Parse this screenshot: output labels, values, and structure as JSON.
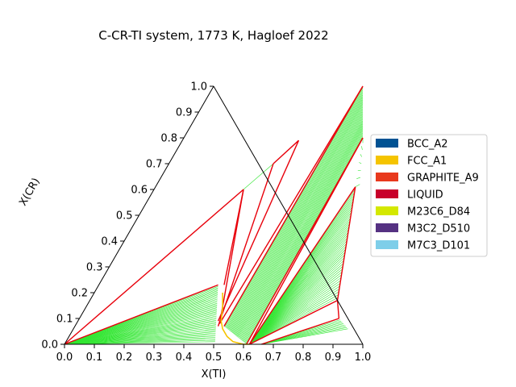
{
  "chart_data": {
    "type": "ternary",
    "title": "C-CR-TI system, 1773 K, Hagloef 2022",
    "xlabel": "X(TI)",
    "ylabel": "X(CR)",
    "xlim": [
      0,
      1
    ],
    "ylim": [
      0,
      1
    ],
    "x_ticks": [
      "0.0",
      "0.1",
      "0.2",
      "0.3",
      "0.4",
      "0.5",
      "0.6",
      "0.7",
      "0.8",
      "0.9",
      "1.0"
    ],
    "y_ticks": [
      "0.0",
      "0.1",
      "0.2",
      "0.3",
      "0.4",
      "0.5",
      "0.6",
      "0.7",
      "0.8",
      "0.9",
      "1.0"
    ],
    "legend_position": "center-right",
    "legend": [
      {
        "label": "BCC_A2",
        "color": "#005293"
      },
      {
        "label": "FCC_A1",
        "color": "#f5c400"
      },
      {
        "label": "GRAPHITE_A9",
        "color": "#e8391d"
      },
      {
        "label": "LIQUID",
        "color": "#c8002a"
      },
      {
        "label": "M23C6_D84",
        "color": "#d4e800"
      },
      {
        "label": "M3C2_D510",
        "color": "#553182"
      },
      {
        "label": "M7C3_D101",
        "color": "#7ecee9"
      }
    ],
    "phase_boundaries": [
      {
        "color": "#e8000b",
        "points": [
          [
            0.0,
            0.0
          ],
          [
            0.4,
            0.23
          ]
        ]
      },
      {
        "color": "#e8000b",
        "points": [
          [
            0.0,
            0.0
          ],
          [
            0.3,
            0.6
          ]
        ]
      },
      {
        "color": "#e8000b",
        "points": [
          [
            0.3,
            0.6
          ],
          [
            0.42,
            0.23
          ]
        ]
      },
      {
        "color": "#e8000b",
        "points": [
          [
            0.3,
            0.6
          ],
          [
            0.48,
            0.08
          ]
        ]
      },
      {
        "color": "#e8000b",
        "points": [
          [
            0.35,
            0.7
          ],
          [
            0.48,
            0.07
          ]
        ]
      },
      {
        "color": "#e8000b",
        "points": [
          [
            0.35,
            0.7
          ],
          [
            0.39,
            0.79
          ]
        ]
      },
      {
        "color": "#e8000b",
        "points": [
          [
            0.39,
            0.79
          ],
          [
            0.47,
            0.09
          ]
        ]
      },
      {
        "color": "#e8000b",
        "points": [
          [
            0.5,
            1.0
          ],
          [
            0.48,
            0.08
          ]
        ]
      },
      {
        "color": "#e8000b",
        "points": [
          [
            0.5,
            1.0
          ],
          [
            0.5,
            0.07
          ]
        ]
      },
      {
        "color": "#e8000b",
        "points": [
          [
            0.6,
            0.8
          ],
          [
            0.61,
            0.0
          ]
        ]
      },
      {
        "color": "#e8000b",
        "points": [
          [
            0.6,
            0.8
          ],
          [
            0.62,
            0.0
          ]
        ]
      },
      {
        "color": "#e8000b",
        "points": [
          [
            0.67,
            0.61
          ],
          [
            0.62,
            0.0
          ]
        ]
      },
      {
        "color": "#e8000b",
        "points": [
          [
            0.67,
            0.61
          ],
          [
            0.83,
            0.17
          ]
        ]
      },
      {
        "color": "#e8000b",
        "points": [
          [
            0.83,
            0.17
          ],
          [
            0.62,
            0.0
          ]
        ]
      },
      {
        "color": "#e8000b",
        "points": [
          [
            0.83,
            0.17
          ],
          [
            0.87,
            0.1
          ]
        ]
      },
      {
        "color": "#e8000b",
        "points": [
          [
            0.87,
            0.1
          ],
          [
            0.66,
            0.0
          ]
        ]
      }
    ],
    "liquid_boundary": {
      "color": "#f5c400",
      "points": [
        [
          0.43,
          0.2
        ],
        [
          0.46,
          0.14
        ],
        [
          0.48,
          0.09
        ],
        [
          0.5,
          0.06
        ],
        [
          0.53,
          0.03
        ],
        [
          0.56,
          0.01
        ],
        [
          0.6,
          0.0
        ],
        [
          0.62,
          0.0
        ]
      ]
    },
    "tie_line_regions": [
      {
        "color": "#32e632",
        "count": 40,
        "a": [
          [
            0.0,
            0.0
          ],
          [
            0.0,
            0.0
          ]
        ],
        "b": [
          [
            0.4,
            0.23
          ],
          [
            0.5,
            0.01
          ]
        ]
      },
      {
        "color": "#32e632",
        "count": 30,
        "a": [
          [
            0.5,
            1.0
          ],
          [
            0.6,
            0.8
          ]
        ],
        "b": [
          [
            0.5,
            0.07
          ],
          [
            0.61,
            0.0
          ]
        ]
      },
      {
        "color": "#32e632",
        "count": 40,
        "a": [
          [
            0.67,
            0.61
          ],
          [
            0.83,
            0.17
          ]
        ],
        "b": [
          [
            0.62,
            0.0
          ],
          [
            0.62,
            0.0
          ]
        ]
      },
      {
        "color": "#32e632",
        "count": 6,
        "a": [
          [
            0.0,
            0.0
          ],
          [
            0.3,
            0.6
          ]
        ],
        "b": [
          [
            0.0,
            0.0
          ],
          [
            0.36,
            0.72
          ]
        ]
      },
      {
        "color": "#32e632",
        "count": 6,
        "a": [
          [
            0.6,
            0.8
          ],
          [
            0.67,
            0.61
          ]
        ],
        "b": [
          [
            0.61,
            0.78
          ],
          [
            0.68,
            0.62
          ]
        ]
      },
      {
        "color": "#32e632",
        "count": 8,
        "a": [
          [
            0.87,
            0.1
          ],
          [
            0.92,
            0.06
          ]
        ],
        "b": [
          [
            0.66,
            0.0
          ],
          [
            0.66,
            0.0
          ]
        ]
      }
    ]
  }
}
